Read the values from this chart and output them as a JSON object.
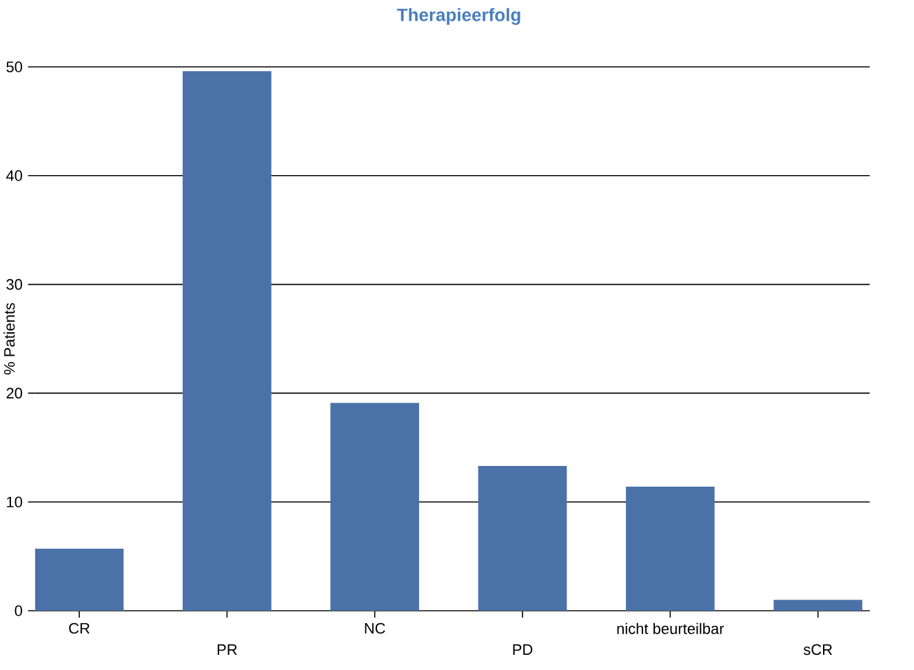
{
  "chart_data": {
    "type": "bar",
    "title": "Therapieerfolg",
    "ylabel": "% Patients",
    "categories": [
      "CR",
      "PR",
      "NC",
      "PD",
      "nicht beurteilbar",
      "sCR"
    ],
    "values": [
      5.7,
      49.6,
      19.1,
      13.3,
      11.4,
      1.0
    ],
    "color": "#4a72a8",
    "ylim": [
      0,
      50
    ],
    "yticks": [
      0,
      10,
      20,
      30,
      40,
      50
    ],
    "grid": "y"
  }
}
